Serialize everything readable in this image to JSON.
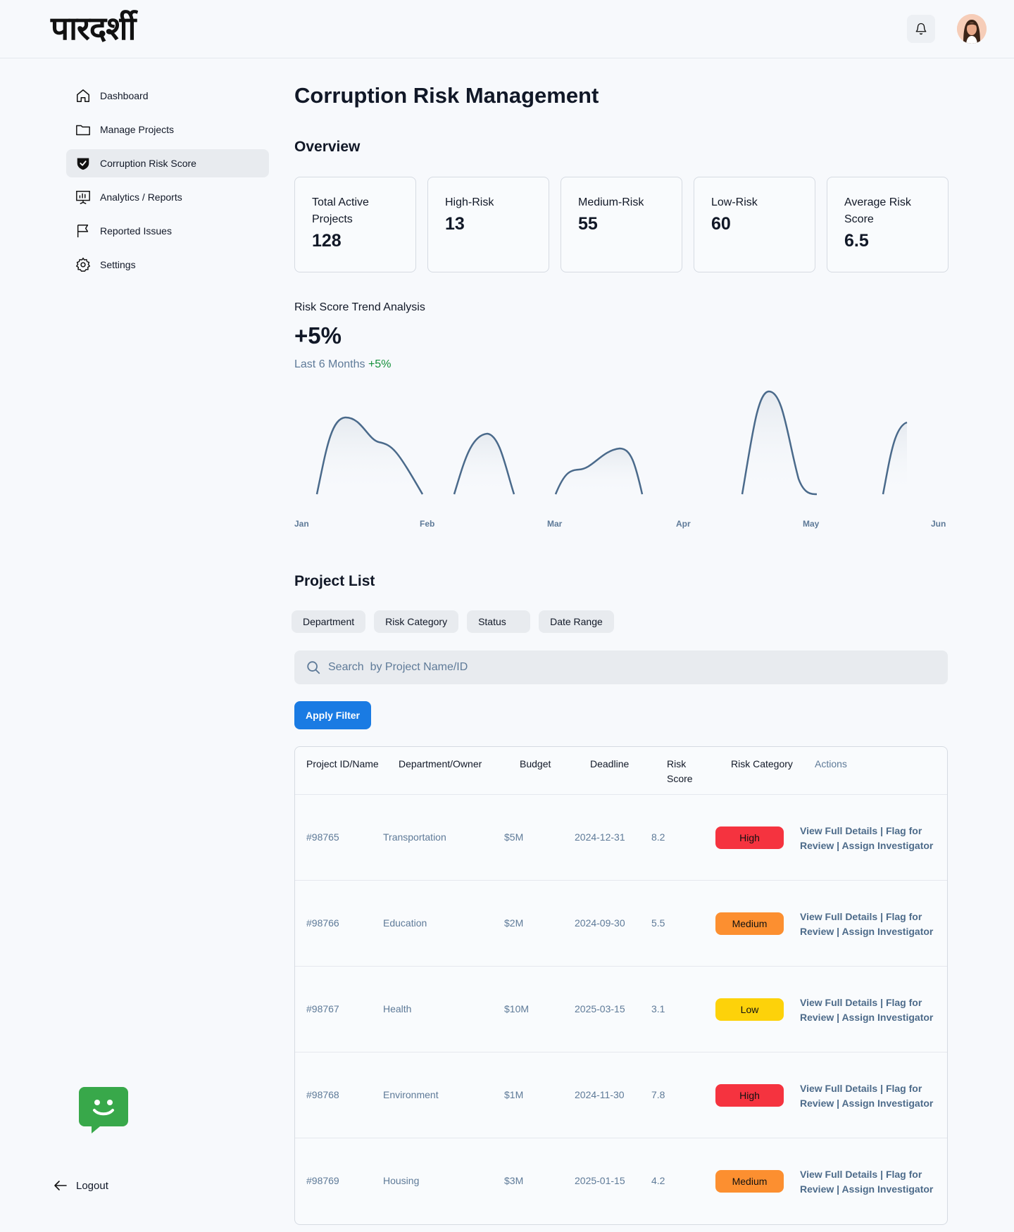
{
  "header": {
    "logo": "पारदर्शी"
  },
  "sidebar": {
    "items": [
      {
        "label": "Dashboard"
      },
      {
        "label": "Manage Projects"
      },
      {
        "label": "Corruption Risk Score"
      },
      {
        "label": "Analytics / Reports"
      },
      {
        "label": "Reported Issues"
      },
      {
        "label": "Settings"
      }
    ],
    "active_index": 2,
    "logout": "Logout"
  },
  "main": {
    "title": "Corruption Risk Management",
    "overview_title": "Overview",
    "stats": [
      {
        "label": "Total Active Projects",
        "value": "128"
      },
      {
        "label": "High-Risk",
        "value": "13"
      },
      {
        "label": "Medium-Risk",
        "value": "55"
      },
      {
        "label": "Low-Risk",
        "value": "60"
      },
      {
        "label": "Average Risk Score",
        "value": "6.5"
      }
    ],
    "trend": {
      "title": "Risk Score Trend Analysis",
      "value": "+5%",
      "sub_label": "Last 6 Months",
      "sub_change": "+5%"
    },
    "project_list_title": "Project List",
    "filters": [
      "Department",
      "Risk Category",
      "Status",
      "Date Range"
    ],
    "search_placeholder": "Search  by Project Name/ID",
    "apply_label": "Apply Filter",
    "table": {
      "headers": [
        "Project ID/Name",
        "Department/Owner",
        "Budget",
        "Deadline",
        "Risk Score",
        "Risk Category",
        "Actions"
      ],
      "rows": [
        {
          "id": "#98765",
          "dept": "Transportation",
          "budget": "$5M",
          "deadline": "2024-12-31",
          "score": "8.2",
          "category": "High",
          "color": "#f5333f"
        },
        {
          "id": "#98766",
          "dept": "Education",
          "budget": "$2M",
          "deadline": "2024-09-30",
          "score": "5.5",
          "category": "Medium",
          "color": "#fc8f30"
        },
        {
          "id": "#98767",
          "dept": "Health",
          "budget": "$10M",
          "deadline": "2025-03-15",
          "score": "3.1",
          "category": "Low",
          "color": "#fdd20a"
        },
        {
          "id": "#98768",
          "dept": "Environment",
          "budget": "$1M",
          "deadline": "2024-11-30",
          "score": "7.8",
          "category": "High",
          "color": "#f5333f"
        },
        {
          "id": "#98769",
          "dept": "Housing",
          "budget": "$3M",
          "deadline": "2025-01-15",
          "score": "4.2",
          "category": "Medium",
          "color": "#fc8f30"
        }
      ],
      "actions": {
        "view": "View Full Details",
        "flag": "Flag for Review",
        "assign": "Assign Investigator",
        "sep": " | "
      }
    }
  },
  "chart_data": {
    "type": "area",
    "x": [
      "Jan",
      "Feb",
      "Mar",
      "Apr",
      "May",
      "Jun"
    ],
    "line_color": "#4a6a8b"
  }
}
